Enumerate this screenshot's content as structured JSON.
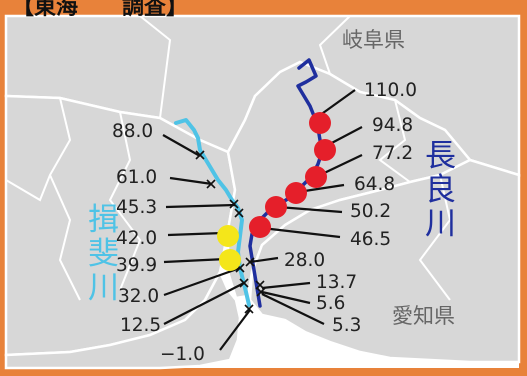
{
  "title": "【東海　　調査】",
  "prefectures": {
    "gifu": "岐阜県",
    "aichi": "愛知県"
  },
  "rivers": {
    "ibi": {
      "name_chars": [
        "揖",
        "斐",
        "川"
      ],
      "color": "#4fc3e6"
    },
    "nagara": {
      "name_chars": [
        "長",
        "良",
        "川"
      ],
      "color": "#1f2f9e"
    }
  },
  "colors": {
    "frame": "#e8823a",
    "land": "#d7d7d7",
    "land_border": "#ffffff",
    "sea": "#ffffff",
    "marker_red": "#e51f2a",
    "marker_yellow": "#f4e61a",
    "leader_line": "#111111"
  },
  "kilometer_posts": {
    "left": [
      "88.0",
      "61.0",
      "45.3",
      "42.0",
      "39.9",
      "32.0",
      "12.5",
      "−1.0"
    ],
    "right": [
      "110.0",
      "94.8",
      "77.2",
      "64.8",
      "50.2",
      "46.5",
      "28.0",
      "13.7",
      "5.6",
      "5.3"
    ]
  },
  "marker_colors": {
    "110.0": "none",
    "94.8": "red",
    "77.2": "red",
    "64.8": "red",
    "50.2": "red",
    "46.5": "red",
    "42.0": "yellow",
    "39.9": "yellow"
  }
}
